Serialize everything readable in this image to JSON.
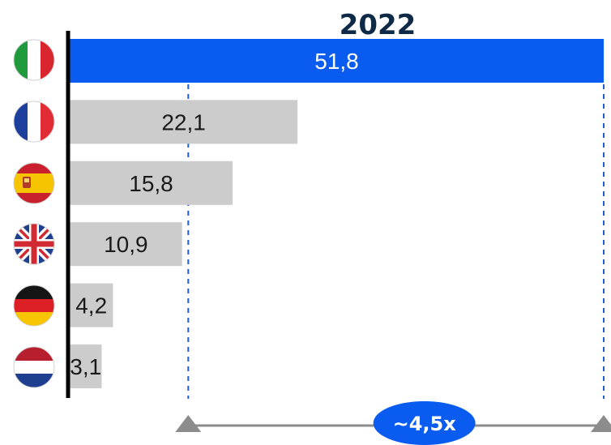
{
  "chart_data": {
    "type": "bar",
    "orientation": "horizontal",
    "title": "2022",
    "categories": [
      "Italy",
      "France",
      "Spain",
      "United Kingdom",
      "Germany",
      "Netherlands"
    ],
    "category_icons": [
      "italy-flag-icon",
      "france-flag-icon",
      "spain-flag-icon",
      "uk-flag-icon",
      "germany-flag-icon",
      "netherlands-flag-icon"
    ],
    "values": [
      51.8,
      22.1,
      15.8,
      10.9,
      4.2,
      3.1
    ],
    "value_labels": [
      "51,8",
      "22,1",
      "15,8",
      "10,9",
      "4,2",
      "3,1"
    ],
    "xlim": [
      0,
      51.8
    ],
    "highlight_index": 0,
    "annotation": {
      "label": "~4,5x",
      "from_value": 11.5,
      "to_value": 51.8
    },
    "grid": false
  },
  "colors": {
    "highlight_bar": "#0a5cf0",
    "other_bar": "#cccccc",
    "axis": "#000000",
    "title": "#0e2a47",
    "guide_line": "#1f5fd1",
    "arrow_line": "#8c8c8c",
    "badge": "#0a5cf0"
  }
}
